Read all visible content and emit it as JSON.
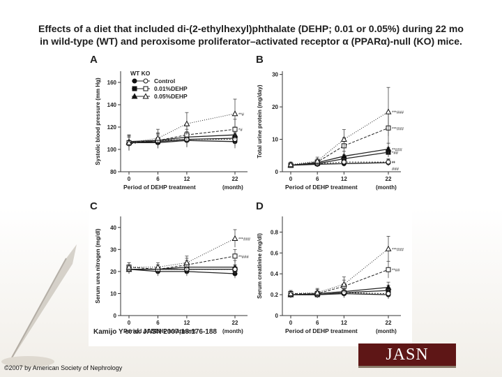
{
  "slide": {
    "title_line1": "Effects of a diet that included di-(2-ethylhexyl)phthalate (DEHP; 0.01 or 0.05%) during 22 mo",
    "title_line2": "in wild-type (WT) and peroxisome proliferator–activated receptor α (PPARα)-null (KO) mice.",
    "citation": "Kamijo Y et al. JASN 2007;18:176-188",
    "copyright": "©2007 by American Society of Nephrology",
    "logo_text": "JASN",
    "colors": {
      "logo_bg": "#5e1616",
      "line": "#333333"
    }
  },
  "chart_data": [
    {
      "panel": "A",
      "type": "line",
      "ylabel": "Systolic blood pressure (mm Hg)",
      "xlabel": "Period of DEHP treatment",
      "x_unit": "(month)",
      "x": [
        0,
        6,
        12,
        22
      ],
      "ylim": [
        80,
        170
      ],
      "yticks": [
        80,
        100,
        120,
        140,
        160
      ],
      "legend_header": "WT KO",
      "legend": [
        {
          "label": "Control",
          "wt_marker": "circle",
          "ko_marker": "circle"
        },
        {
          "label": "0.01%DEHP",
          "wt_marker": "square",
          "ko_marker": "square"
        },
        {
          "label": "0.05%DEHP",
          "wt_marker": "triangle",
          "ko_marker": "triangle"
        }
      ],
      "series": [
        {
          "group": "WT",
          "treatment": "Control",
          "marker": "circle",
          "filled": true,
          "values": [
            106,
            106,
            108,
            107
          ],
          "err": [
            6,
            5,
            6,
            6
          ]
        },
        {
          "group": "WT",
          "treatment": "0.01%DEHP",
          "marker": "square",
          "filled": true,
          "values": [
            106,
            107,
            109,
            110
          ],
          "err": [
            6,
            6,
            7,
            7
          ]
        },
        {
          "group": "WT",
          "treatment": "0.05%DEHP",
          "marker": "triangle",
          "filled": true,
          "values": [
            107,
            108,
            111,
            113
          ],
          "err": [
            6,
            6,
            7,
            7
          ]
        },
        {
          "group": "KO",
          "treatment": "Control",
          "marker": "circle",
          "filled": false,
          "values": [
            105,
            108,
            109,
            109
          ],
          "err": [
            6,
            6,
            6,
            6
          ]
        },
        {
          "group": "KO",
          "treatment": "0.01%DEHP",
          "marker": "square",
          "filled": false,
          "values": [
            106,
            108,
            113,
            118
          ],
          "err": [
            6,
            7,
            8,
            9
          ]
        },
        {
          "group": "KO",
          "treatment": "0.05%DEHP",
          "marker": "triangle",
          "filled": false,
          "values": [
            106,
            110,
            123,
            132
          ],
          "err": [
            7,
            8,
            10,
            13
          ]
        }
      ],
      "annotations": [
        "**#",
        "*#"
      ]
    },
    {
      "panel": "B",
      "type": "line",
      "ylabel": "Total urine protein (mg/day)",
      "xlabel": "Period of DEHP treatment",
      "x_unit": "(month)",
      "x": [
        0,
        6,
        12,
        22
      ],
      "ylim": [
        0,
        31
      ],
      "yticks": [
        0,
        10,
        20,
        30
      ],
      "series": [
        {
          "group": "WT",
          "treatment": "Control",
          "marker": "circle",
          "filled": true,
          "values": [
            2,
            2.3,
            2.5,
            2.8
          ],
          "err": [
            0.6,
            0.6,
            0.8,
            1
          ]
        },
        {
          "group": "WT",
          "treatment": "0.01%DEHP",
          "marker": "square",
          "filled": true,
          "values": [
            2,
            2.5,
            4,
            6
          ],
          "err": [
            0.6,
            0.8,
            1.2,
            1.5
          ]
        },
        {
          "group": "WT",
          "treatment": "0.05%DEHP",
          "marker": "triangle",
          "filled": true,
          "values": [
            2,
            2.8,
            4.8,
            7
          ],
          "err": [
            0.6,
            0.8,
            1.5,
            1.8
          ]
        },
        {
          "group": "KO",
          "treatment": "Control",
          "marker": "circle",
          "filled": false,
          "values": [
            2,
            2.5,
            3,
            3
          ],
          "err": [
            0.6,
            0.8,
            1,
            1
          ]
        },
        {
          "group": "KO",
          "treatment": "0.01%DEHP",
          "marker": "square",
          "filled": false,
          "values": [
            2,
            3,
            8,
            13.5
          ],
          "err": [
            0.8,
            1,
            2.5,
            5
          ]
        },
        {
          "group": "KO",
          "treatment": "0.05%DEHP",
          "marker": "triangle",
          "filled": false,
          "values": [
            2.2,
            3.3,
            10,
            18.5
          ],
          "err": [
            0.8,
            1.2,
            3,
            7.5
          ]
        }
      ],
      "annotations": [
        "***###",
        "***###",
        "**###",
        "*##",
        "**",
        "**",
        "###"
      ]
    },
    {
      "panel": "C",
      "type": "line",
      "ylabel": "Serum urea nitrogen (mg/dl)",
      "xlabel": "Period of DEHP treatment",
      "x_unit": "(month)",
      "x": [
        0,
        6,
        12,
        22
      ],
      "ylim": [
        0,
        45
      ],
      "yticks": [
        0,
        10,
        20,
        30,
        40
      ],
      "series": [
        {
          "group": "WT",
          "treatment": "Control",
          "marker": "circle",
          "filled": true,
          "values": [
            21,
            20,
            20,
            19
          ],
          "err": [
            2,
            2,
            2,
            2
          ]
        },
        {
          "group": "WT",
          "treatment": "0.01%DEHP",
          "marker": "square",
          "filled": true,
          "values": [
            21,
            21,
            21,
            21
          ],
          "err": [
            2,
            2,
            2,
            2
          ]
        },
        {
          "group": "WT",
          "treatment": "0.05%DEHP",
          "marker": "triangle",
          "filled": true,
          "values": [
            21,
            21,
            22,
            22
          ],
          "err": [
            2,
            2,
            3,
            3
          ]
        },
        {
          "group": "KO",
          "treatment": "Control",
          "marker": "circle",
          "filled": false,
          "values": [
            21,
            21,
            21,
            21
          ],
          "err": [
            2,
            2,
            2,
            2
          ]
        },
        {
          "group": "KO",
          "treatment": "0.01%DEHP",
          "marker": "square",
          "filled": false,
          "values": [
            22,
            21,
            23,
            27
          ],
          "err": [
            2,
            2,
            3,
            3
          ]
        },
        {
          "group": "KO",
          "treatment": "0.05%DEHP",
          "marker": "triangle",
          "filled": false,
          "values": [
            22,
            22,
            24,
            35
          ],
          "err": [
            2,
            2,
            3,
            4
          ]
        }
      ],
      "annotations": [
        "***###",
        "**###"
      ]
    },
    {
      "panel": "D",
      "type": "line",
      "ylabel": "Serum creatinine (mg/dl)",
      "xlabel": "Period of DEHP treatment",
      "x_unit": "(month)",
      "x": [
        0,
        6,
        12,
        22
      ],
      "ylim": [
        0,
        0.95
      ],
      "yticks": [
        0,
        0.2,
        0.4,
        0.6,
        0.8
      ],
      "series": [
        {
          "group": "WT",
          "treatment": "Control",
          "marker": "circle",
          "filled": true,
          "values": [
            0.2,
            0.2,
            0.21,
            0.2
          ],
          "err": [
            0.03,
            0.03,
            0.04,
            0.04
          ]
        },
        {
          "group": "WT",
          "treatment": "0.01%DEHP",
          "marker": "square",
          "filled": true,
          "values": [
            0.2,
            0.2,
            0.22,
            0.24
          ],
          "err": [
            0.03,
            0.03,
            0.04,
            0.05
          ]
        },
        {
          "group": "WT",
          "treatment": "0.05%DEHP",
          "marker": "triangle",
          "filled": true,
          "values": [
            0.2,
            0.21,
            0.23,
            0.27
          ],
          "err": [
            0.03,
            0.03,
            0.04,
            0.05
          ]
        },
        {
          "group": "KO",
          "treatment": "Control",
          "marker": "circle",
          "filled": false,
          "values": [
            0.2,
            0.2,
            0.22,
            0.21
          ],
          "err": [
            0.03,
            0.03,
            0.04,
            0.04
          ]
        },
        {
          "group": "KO",
          "treatment": "0.01%DEHP",
          "marker": "square",
          "filled": false,
          "values": [
            0.21,
            0.21,
            0.28,
            0.44
          ],
          "err": [
            0.03,
            0.04,
            0.06,
            0.08
          ]
        },
        {
          "group": "KO",
          "treatment": "0.05%DEHP",
          "marker": "triangle",
          "filled": false,
          "values": [
            0.21,
            0.22,
            0.3,
            0.64
          ],
          "err": [
            0.03,
            0.04,
            0.07,
            0.12
          ]
        }
      ],
      "annotations": [
        "***###",
        "**##"
      ]
    }
  ]
}
